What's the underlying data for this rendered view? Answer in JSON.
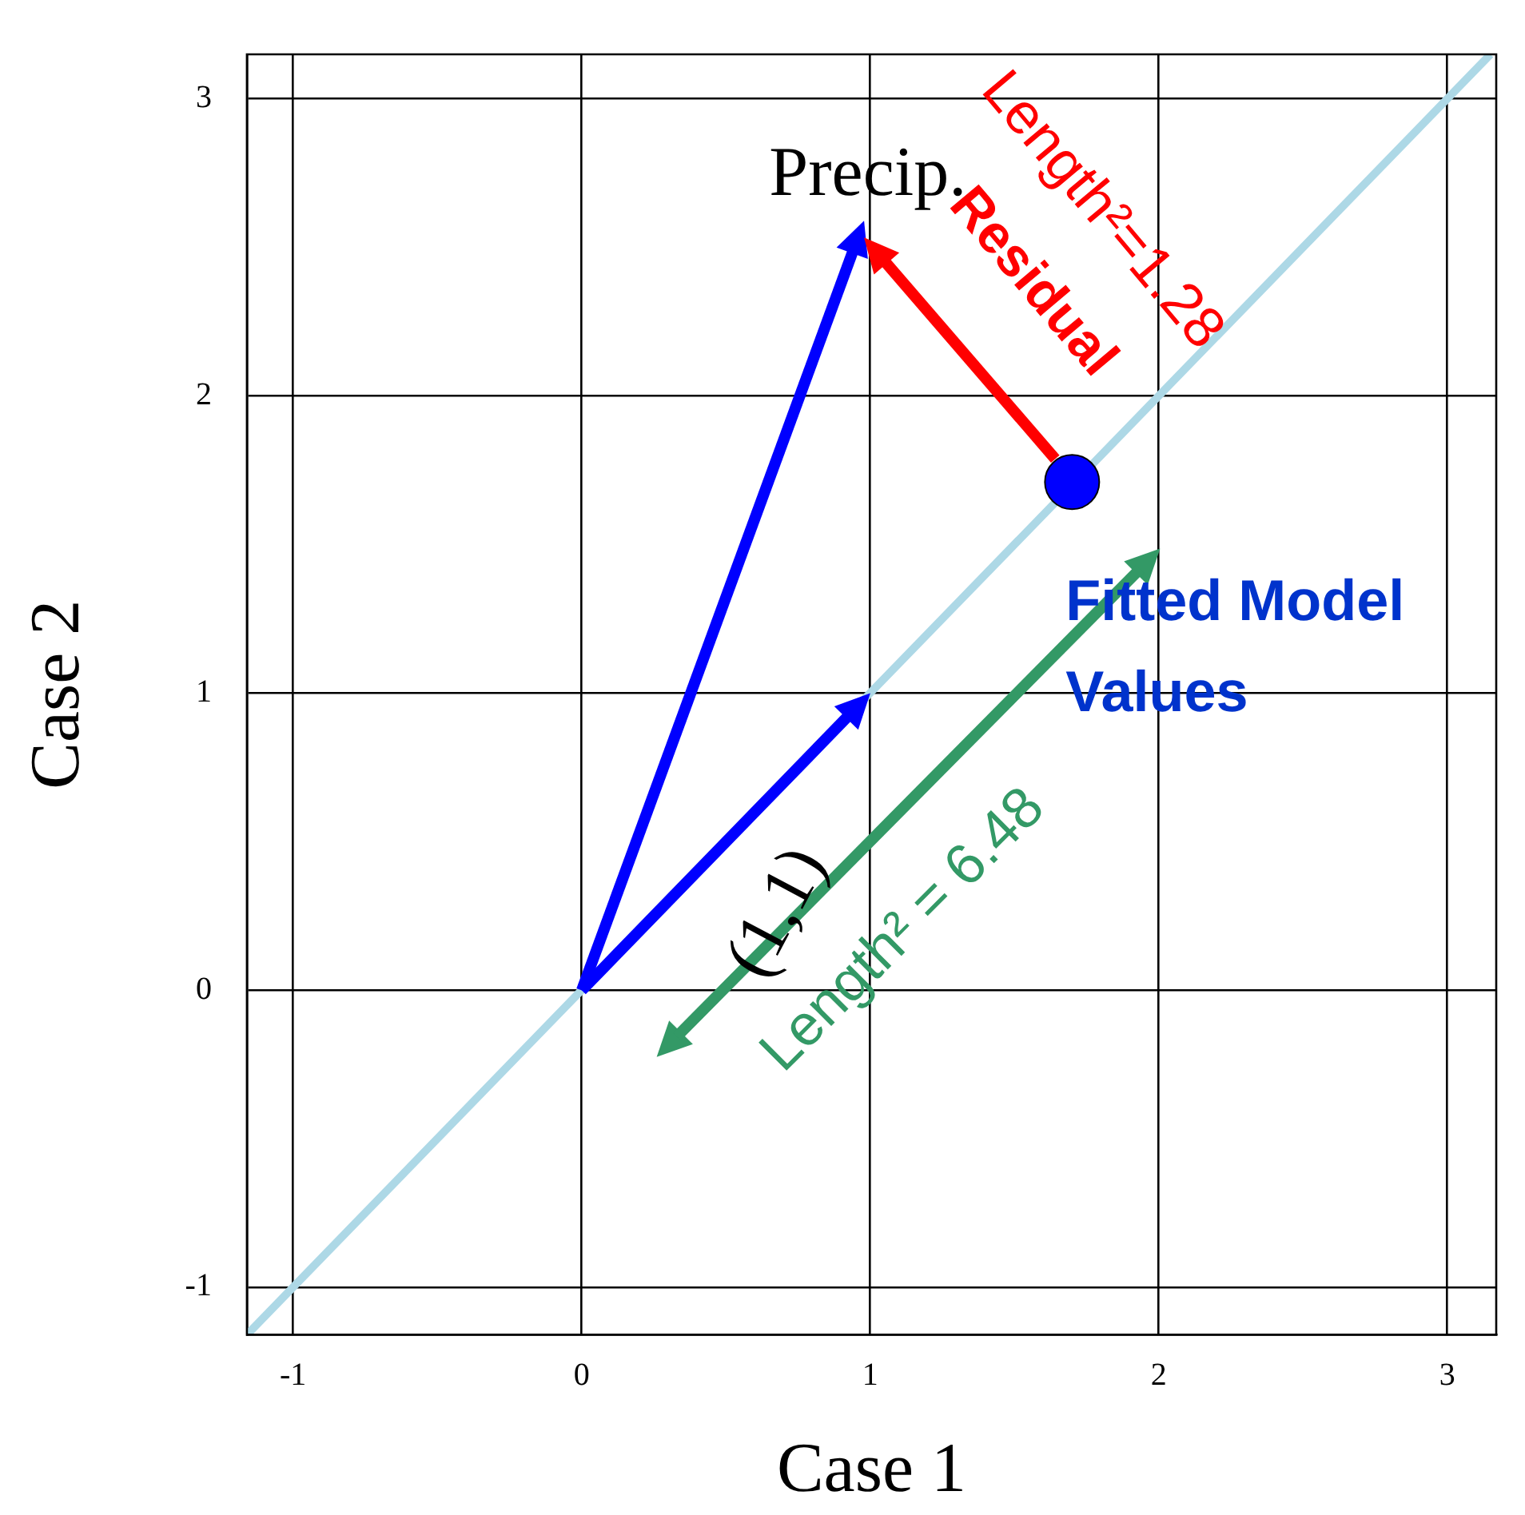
{
  "chart_data": {
    "type": "line",
    "xlabel": "Case 1",
    "ylabel": "Case 2",
    "xlim": [
      -1.16,
      3.17
    ],
    "ylim": [
      -1.16,
      3.15
    ],
    "xticks": [
      -1,
      0,
      1,
      2,
      3
    ],
    "yticks": [
      -1,
      0,
      1,
      2,
      3
    ],
    "grid": true,
    "legend": false,
    "series": [
      {
        "color": "#add8e6",
        "x": [
          -1.16,
          3.15
        ],
        "values": [
          -1.16,
          3.15
        ]
      },
      {
        "type": "scatter",
        "color": "#0000ff",
        "x": [
          1.7
        ],
        "values": [
          1.71
        ]
      }
    ],
    "annotations": [
      "Precip.",
      "(1,1)",
      "Residual",
      "Length²=1.28",
      "Fitted Model Values",
      "Length² = 6.48"
    ]
  }
}
